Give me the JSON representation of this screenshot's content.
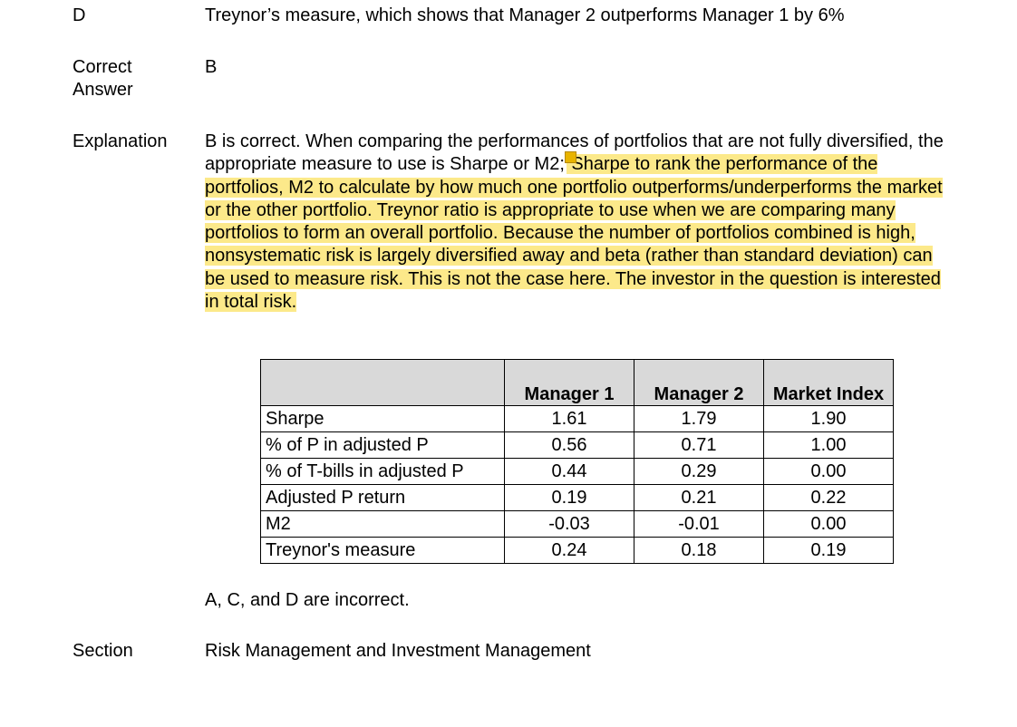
{
  "option_d": {
    "letter": "D",
    "text": "Treynor’s measure, which shows that Manager 2 outperforms Manager 1 by 6%"
  },
  "correct_answer": {
    "label": "Correct Answer",
    "value": "B"
  },
  "explanation": {
    "label": "Explanation",
    "plain_text": "B is correct. When comparing the performances of portfolios that are not fully diversified, the appropriate measure to use is Sharpe or M2;",
    "highlighted_text": " Sharpe to rank the performance of the portfolios, M2 to calculate by how much one portfolio outperforms/underperforms the market or the other portfolio. Treynor ratio is appropriate to use when we are comparing many portfolios to form an overall portfolio. Because the number of portfolios combined is high, nonsystematic risk is largely diversified away and beta (rather than standard deviation) can be used to measure risk. This is not the case here. The investor in the question is interested in total risk.",
    "highlight_color": "#fce98a"
  },
  "table": {
    "headers": [
      "",
      "Manager 1",
      "Manager 2",
      "Market Index"
    ],
    "rows": [
      [
        "Sharpe",
        "1.61",
        "1.79",
        "1.90"
      ],
      [
        "% of P in adjusted P",
        "0.56",
        "0.71",
        "1.00"
      ],
      [
        "% of T-bills in adjusted P",
        "0.44",
        "0.29",
        "0.00"
      ],
      [
        "Adjusted P return",
        "0.19",
        "0.21",
        "0.22"
      ],
      [
        "M2",
        "-0.03",
        "-0.01",
        "0.00"
      ],
      [
        "Treynor's measure",
        "0.24",
        "0.18",
        "0.19"
      ]
    ]
  },
  "incorrect_note": "A, C, and D are incorrect.",
  "section": {
    "label": "Section",
    "value": "Risk Management and Investment Management"
  }
}
